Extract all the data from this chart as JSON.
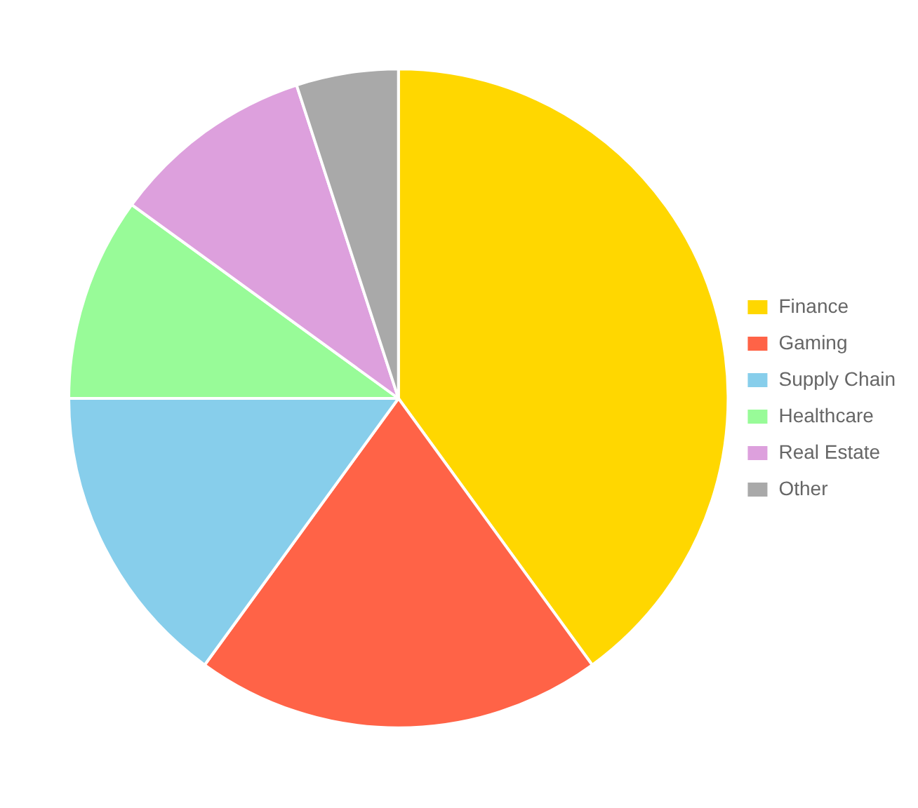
{
  "chart_data": {
    "type": "pie",
    "categories": [
      "Finance",
      "Gaming",
      "Supply Chain",
      "Healthcare",
      "Real Estate",
      "Other"
    ],
    "values": [
      40,
      20,
      15,
      10,
      10,
      5
    ],
    "colors": [
      "#ffd700",
      "#ff6347",
      "#87ceeb",
      "#98fb98",
      "#dda0dd",
      "#a9a9a9"
    ],
    "legend": "right"
  }
}
